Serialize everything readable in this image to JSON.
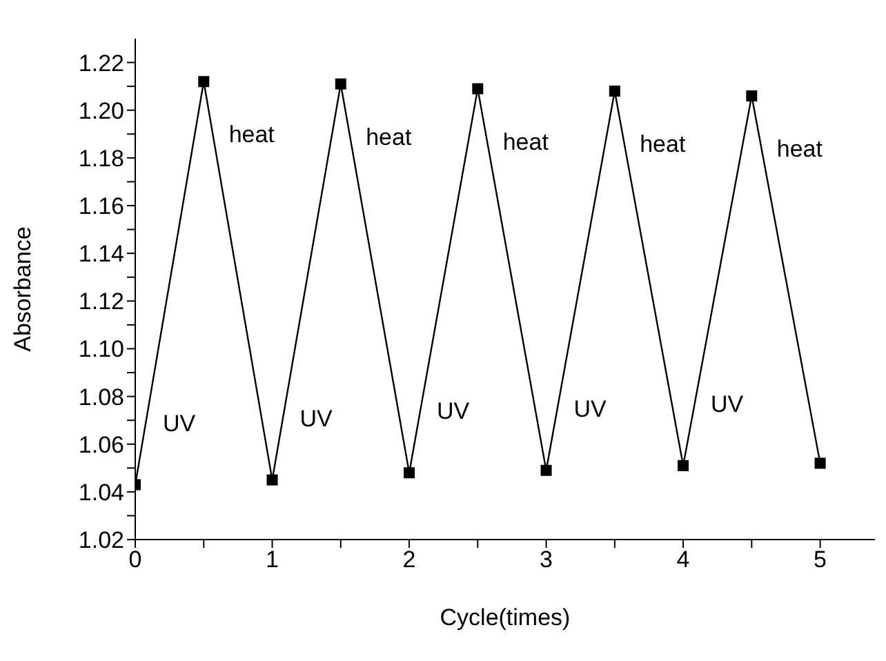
{
  "chart_data": {
    "type": "line",
    "xlabel": "Cycle(times)",
    "ylabel": "Absorbance",
    "x": [
      0,
      0.5,
      1,
      1.5,
      2,
      2.5,
      3,
      3.5,
      4,
      4.5,
      5
    ],
    "series": [
      {
        "color": "#000000",
        "values": [
          1.043,
          1.212,
          1.045,
          1.211,
          1.048,
          1.209,
          1.049,
          1.208,
          1.051,
          1.206,
          1.052
        ]
      }
    ],
    "xlim": [
      0,
      5.4
    ],
    "xticks": [
      0,
      {
        "value": 0.5,
        "label": null
      },
      1,
      {
        "value": 1.5,
        "label": null
      },
      2,
      {
        "value": 2.5,
        "label": null
      },
      3,
      {
        "value": 3.5,
        "label": null
      },
      4,
      {
        "value": 4.5,
        "label": null
      },
      5
    ],
    "ylim": [
      1.02,
      1.23
    ],
    "yticks": [
      {
        "value": 1.02,
        "label": "1.02"
      },
      {
        "value": 1.03,
        "label": null
      },
      {
        "value": 1.04,
        "label": "1.04"
      },
      {
        "value": 1.05,
        "label": null
      },
      {
        "value": 1.06,
        "label": "1.06"
      },
      {
        "value": 1.07,
        "label": null
      },
      {
        "value": 1.08,
        "label": "1.08"
      },
      {
        "value": 1.09,
        "label": null
      },
      {
        "value": 1.1,
        "label": "1.10"
      },
      {
        "value": 1.11,
        "label": null
      },
      {
        "value": 1.12,
        "label": "1.12"
      },
      {
        "value": 1.13,
        "label": null
      },
      {
        "value": 1.14,
        "label": "1.14"
      },
      {
        "value": 1.15,
        "label": null
      },
      {
        "value": 1.16,
        "label": "1.16"
      },
      {
        "value": 1.17,
        "label": null
      },
      {
        "value": 1.18,
        "label": "1.18"
      },
      {
        "value": 1.19,
        "label": null
      },
      {
        "value": 1.2,
        "label": "1.20"
      },
      {
        "value": 1.21,
        "label": null
      },
      {
        "value": 1.22,
        "label": "1.22"
      }
    ],
    "marker": "square",
    "line_style": "solid",
    "grid": false,
    "legend": false,
    "annotations": [
      "UV",
      "heat",
      "UV",
      "heat",
      "UV",
      "heat",
      "UV",
      "heat",
      "UV",
      "heat"
    ]
  }
}
